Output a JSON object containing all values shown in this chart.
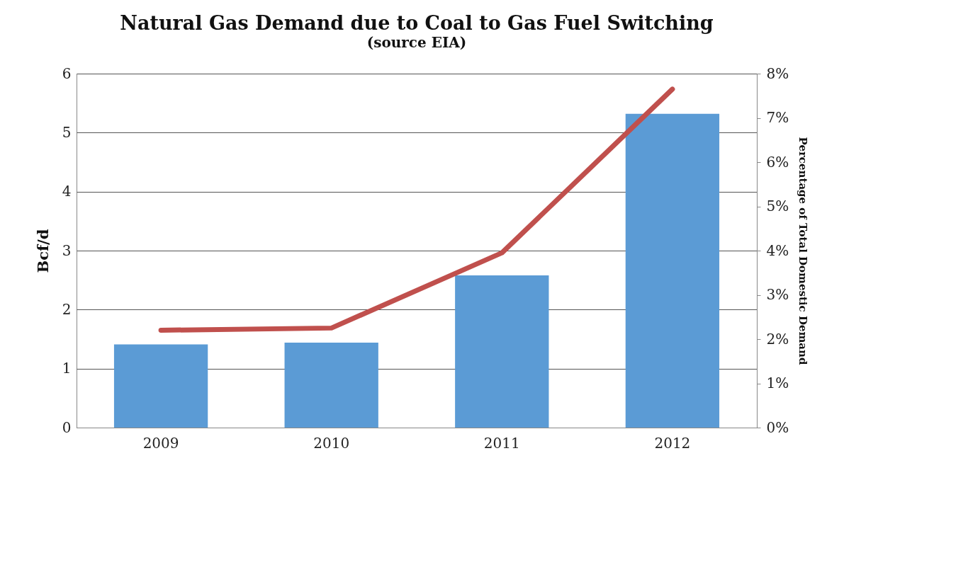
{
  "chart_data": {
    "type": "bar",
    "title": "Natural Gas Demand due to Coal to Gas Fuel Switching",
    "subtitle": "(source EIA)",
    "ylabel": "Bcf/d",
    "y2label": "Percentage of Total Domestic Demand",
    "categories": [
      "2009",
      "2010",
      "2011",
      "2012"
    ],
    "series": [
      {
        "color": "#5b9bd5",
        "values": [
          1.41,
          1.44,
          2.58,
          5.32
        ]
      },
      {
        "type": "line",
        "axis": "y2",
        "color": "#c0504d",
        "values": [
          2.2,
          2.25,
          3.95,
          7.65
        ]
      }
    ],
    "ylim": [
      0,
      6
    ],
    "yticks": [
      0,
      1,
      2,
      3,
      4,
      5,
      6
    ],
    "y2lim": [
      0,
      8
    ],
    "y2ticks": [
      {
        "value": 0,
        "label": "0%"
      },
      {
        "value": 1,
        "label": "1%"
      },
      {
        "value": 2,
        "label": "2%"
      },
      {
        "value": 3,
        "label": "3%"
      },
      {
        "value": 4,
        "label": "4%"
      },
      {
        "value": 5,
        "label": "5%"
      },
      {
        "value": 6,
        "label": "6%"
      },
      {
        "value": 7,
        "label": "7%"
      },
      {
        "value": 8,
        "label": "8%"
      }
    ],
    "grid": "y",
    "marker": "none",
    "line_style": "solid"
  }
}
